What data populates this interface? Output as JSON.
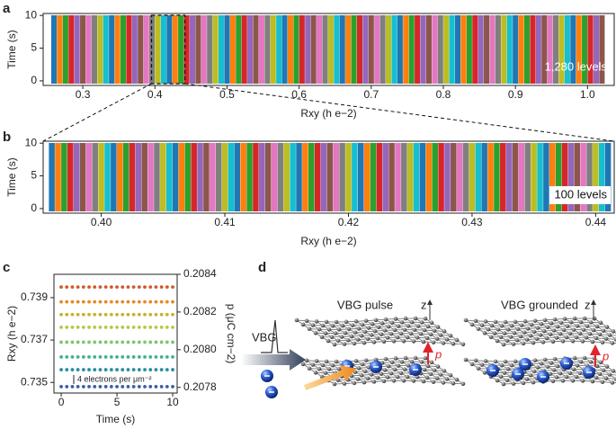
{
  "chart_data": [
    {
      "panel": "a",
      "type": "levels",
      "x_label": "Rxy (h e−2)",
      "y_label": "Time (s)",
      "annotation": "1,280 levels",
      "xlim": [
        0.245,
        1.037
      ],
      "ylim": [
        -0.7,
        10.3
      ],
      "xticks": [
        0.3,
        0.4,
        0.5,
        0.6,
        0.7,
        0.8,
        0.9,
        {
          "value": 1,
          "label": "1.0"
        }
      ],
      "yticks": [
        0,
        5,
        10
      ],
      "colors": [
        "#1f77b4",
        "#ff7f0e",
        "#2ca02c",
        "#d62728",
        "#9467bd",
        "#8c564b",
        "#e377c2",
        "#7f7f7f",
        "#bcbd22",
        "#17becf"
      ],
      "levels": [
        0.26,
        0.268,
        0.276,
        0.284,
        0.292,
        0.3,
        0.308,
        0.316,
        0.324,
        0.332,
        0.34,
        0.348,
        0.356,
        0.364,
        0.372,
        0.38,
        0.388,
        0.396,
        0.404,
        0.412,
        0.42,
        0.428,
        0.436,
        0.444,
        0.452,
        0.46,
        0.468,
        0.476,
        0.484,
        0.492,
        0.5,
        0.508,
        0.516,
        0.524,
        0.532,
        0.54,
        0.548,
        0.556,
        0.564,
        0.572,
        0.58,
        0.588,
        0.596,
        0.604,
        0.612,
        0.62,
        0.628,
        0.636,
        0.644,
        0.652,
        0.66,
        0.668,
        0.676,
        0.684,
        0.692,
        0.7,
        0.708,
        0.716,
        0.724,
        0.732,
        0.74,
        0.748,
        0.756,
        0.764,
        0.772,
        0.78,
        0.788,
        0.796,
        0.804,
        0.812,
        0.82,
        0.828,
        0.836,
        0.844,
        0.852,
        0.86,
        0.868,
        0.876,
        0.884,
        0.892,
        0.9,
        0.908,
        0.916,
        0.924,
        0.932,
        0.94,
        0.948,
        0.956,
        0.964,
        0.972,
        0.98,
        0.988,
        0.996,
        1.004,
        1.012,
        1.02
      ]
    },
    {
      "panel": "b",
      "type": "levels",
      "x_label": "Rxy (h e−2)",
      "y_label": "Time (s)",
      "annotation": "100 levels",
      "xlim": [
        0.3953,
        0.4415
      ],
      "ylim": [
        -0.7,
        10.3
      ],
      "xticks": [
        {
          "value": 0.4,
          "label": "0.40"
        },
        0.41,
        0.42,
        0.43,
        0.44
      ],
      "yticks": [
        0,
        5,
        10
      ],
      "colors": [
        "#1f77b4",
        "#ff7f0e",
        "#2ca02c",
        "#d62728",
        "#9467bd",
        "#8c564b",
        "#e377c2",
        "#7f7f7f",
        "#bcbd22",
        "#17becf"
      ],
      "levels": [
        0.396,
        0.3965,
        0.397,
        0.3975,
        0.398,
        0.3985,
        0.399,
        0.3995,
        0.4,
        0.4005,
        0.401,
        0.4015,
        0.402,
        0.4025,
        0.403,
        0.4035,
        0.404,
        0.4045,
        0.405,
        0.4055,
        0.406,
        0.4065,
        0.407,
        0.4075,
        0.408,
        0.4085,
        0.409,
        0.4095,
        0.41,
        0.4105,
        0.411,
        0.4115,
        0.412,
        0.4125,
        0.413,
        0.4135,
        0.414,
        0.4145,
        0.415,
        0.4155,
        0.416,
        0.4165,
        0.417,
        0.4175,
        0.418,
        0.4185,
        0.419,
        0.4195,
        0.42,
        0.4205,
        0.421,
        0.4215,
        0.422,
        0.4225,
        0.423,
        0.4235,
        0.424,
        0.4245,
        0.425,
        0.4255,
        0.426,
        0.4265,
        0.427,
        0.4275,
        0.428,
        0.4285,
        0.429,
        0.4295,
        0.43,
        0.4305,
        0.431,
        0.4315,
        0.432,
        0.4325,
        0.433,
        0.4335,
        0.434,
        0.4345,
        0.435,
        0.4355,
        0.436,
        0.4365,
        0.437,
        0.4375,
        0.438,
        0.4385,
        0.439,
        0.4395,
        0.44,
        0.4405,
        0.441
      ]
    },
    {
      "panel": "c",
      "type": "scatter",
      "x_label": "Time (s)",
      "y_label": "Rxy (h e−2)",
      "y2_label": "p (μC cm−2)",
      "annotation": "4 electrons per μm⁻²",
      "xlim": [
        -0.65,
        10.4
      ],
      "ylim": [
        0.7345,
        0.7401
      ],
      "y2lim": [
        0.20777,
        0.2084
      ],
      "xticks": [
        0,
        5,
        10
      ],
      "yticks": [
        0.735,
        0.737,
        0.739
      ],
      "y2ticks": [
        {
          "value": 0.2078,
          "label": "0.2078"
        },
        {
          "value": 0.208,
          "label": "0.2080"
        },
        {
          "value": 0.2082,
          "label": "0.2082"
        },
        0.2084
      ],
      "x": [
        0,
        0.5,
        1,
        1.5,
        2,
        2.5,
        3,
        3.5,
        4,
        4.5,
        5,
        5.5,
        6,
        6.5,
        7,
        7.5,
        8,
        8.5,
        9,
        9.5,
        10
      ],
      "series": [
        {
          "color": "#cf5a2c",
          "values": [
            0.7395,
            0.7395,
            0.7395,
            0.7395,
            0.7395,
            0.7395,
            0.7395,
            0.7395,
            0.7395,
            0.7395,
            0.7395,
            0.7395,
            0.7395,
            0.7395,
            0.7395,
            0.7395,
            0.7395,
            0.7395,
            0.7395,
            0.7395,
            0.7395
          ]
        },
        {
          "color": "#e08a2c",
          "values": [
            0.7388,
            0.7388,
            0.7388,
            0.7388,
            0.7388,
            0.7388,
            0.7388,
            0.7388,
            0.7388,
            0.7388,
            0.7388,
            0.7388,
            0.7388,
            0.7388,
            0.7388,
            0.7388,
            0.7388,
            0.7388,
            0.7388,
            0.7388,
            0.7388
          ]
        },
        {
          "color": "#c9b030",
          "values": [
            0.7382,
            0.7382,
            0.7382,
            0.7382,
            0.7382,
            0.7382,
            0.7382,
            0.7382,
            0.7382,
            0.7382,
            0.7382,
            0.7382,
            0.7382,
            0.7382,
            0.7382,
            0.7382,
            0.7382,
            0.7382,
            0.7382,
            0.7382,
            0.7382
          ]
        },
        {
          "color": "#b3c94a",
          "values": [
            0.7376,
            0.7376,
            0.7376,
            0.7376,
            0.7376,
            0.7376,
            0.7376,
            0.7376,
            0.7376,
            0.7376,
            0.7376,
            0.7376,
            0.7376,
            0.7376,
            0.7376,
            0.7376,
            0.7376,
            0.7376,
            0.7376,
            0.7376,
            0.7376
          ]
        },
        {
          "color": "#7fc66a",
          "values": [
            0.7369,
            0.7369,
            0.7369,
            0.7369,
            0.7369,
            0.7369,
            0.7369,
            0.7369,
            0.7369,
            0.7369,
            0.7369,
            0.7369,
            0.7369,
            0.7369,
            0.7369,
            0.7369,
            0.7369,
            0.7369,
            0.7369,
            0.7369,
            0.7369
          ]
        },
        {
          "color": "#43b28a",
          "values": [
            0.7362,
            0.7362,
            0.7362,
            0.7362,
            0.7362,
            0.7362,
            0.7362,
            0.7362,
            0.7362,
            0.7362,
            0.7362,
            0.7362,
            0.7362,
            0.7362,
            0.7362,
            0.7362,
            0.7362,
            0.7362,
            0.7362,
            0.7362,
            0.7362
          ]
        },
        {
          "color": "#2a8fa0",
          "values": [
            0.7356,
            0.7356,
            0.7356,
            0.7356,
            0.7356,
            0.7356,
            0.7356,
            0.7356,
            0.7356,
            0.7356,
            0.7356,
            0.7356,
            0.7356,
            0.7356,
            0.7356,
            0.7356,
            0.7356,
            0.7356,
            0.7356,
            0.7356,
            0.7356
          ]
        },
        {
          "color": "#3b5ea8",
          "values": [
            0.7348,
            0.7348,
            0.7348,
            0.7348,
            0.7348,
            0.7348,
            0.7348,
            0.7348,
            0.7348,
            0.7348,
            0.7348,
            0.7348,
            0.7348,
            0.7348,
            0.7348,
            0.7348,
            0.7348,
            0.7348,
            0.7348,
            0.7348,
            0.7348
          ]
        }
      ]
    }
  ],
  "diagram": {
    "panel": "d",
    "left_title": "VBG pulse",
    "right_title": "VBG grounded",
    "pulse_label": "VBG",
    "axis_z": "z",
    "dipole": "p"
  }
}
